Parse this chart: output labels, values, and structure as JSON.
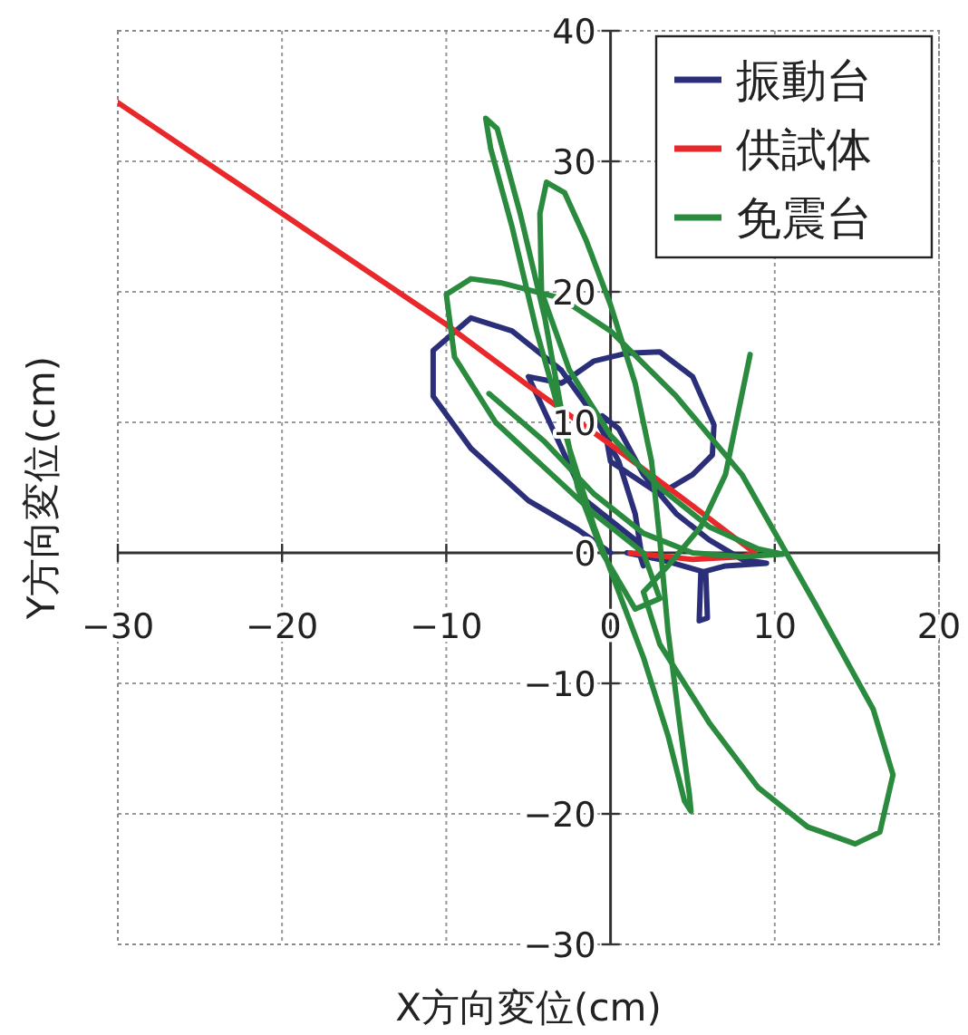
{
  "chart_data": {
    "type": "line",
    "xlabel": "X方向変位(cm)",
    "ylabel": "Y方向変位(cm)",
    "xlim": [
      -30,
      20
    ],
    "ylim": [
      -30,
      40
    ],
    "xticks": [
      -30,
      -20,
      -10,
      0,
      10,
      20
    ],
    "yticks": [
      -30,
      -20,
      -10,
      0,
      10,
      20,
      30,
      40
    ],
    "grid": true,
    "legend": "top right",
    "marker": "none",
    "line_style": "solid",
    "series": [
      {
        "name": "振動台",
        "color": "#2b2f7a",
        "x": [
          0,
          -2,
          -5,
          -8.5,
          -10.8,
          -10.8,
          -8.5,
          -6,
          -3,
          -1,
          0.5,
          1.5,
          2,
          1.5,
          -1.5,
          -5,
          -3,
          -2.6,
          -1,
          1,
          3,
          5,
          6.3,
          6.2,
          5,
          3,
          0,
          -0.5,
          0.5,
          2,
          4,
          6,
          8,
          9.5,
          7,
          5.5,
          5.4,
          5.9,
          5.8,
          3,
          1
        ],
        "values": [
          0,
          1.8,
          4,
          8,
          12,
          15.5,
          18,
          17,
          14,
          10.5,
          7,
          3,
          -1,
          1,
          4,
          13.5,
          13,
          13.3,
          14.7,
          15.3,
          15.4,
          13.5,
          9.8,
          7.5,
          6,
          4.5,
          7,
          10.5,
          9.5,
          6,
          3,
          1,
          -0.5,
          -0.8,
          -1,
          -1.5,
          -5.2,
          -5,
          -1.5,
          -0.5,
          0
        ]
      },
      {
        "name": "供試体",
        "color": "#e8282b",
        "x": [
          -30,
          -20,
          -10,
          -5,
          0,
          5,
          7.5,
          8.8,
          8,
          5,
          2,
          1.2
        ],
        "values": [
          34.5,
          26,
          17.5,
          12.8,
          8.3,
          3.6,
          1.2,
          0,
          -0.3,
          -0.5,
          -0.1,
          0
        ]
      },
      {
        "name": "免震台",
        "color": "#2a8a3e",
        "x": [
          -7.4,
          -4,
          -1,
          2,
          5,
          8,
          10.5,
          9,
          6,
          3,
          0,
          -2.5,
          -4.2,
          -4.3,
          -3.9,
          -2.8,
          -1.5,
          0,
          1.5,
          2.5,
          3,
          3.5,
          4.2,
          4.8,
          4.9,
          4.5,
          3.5,
          2,
          0.5,
          -1,
          -2.5,
          -4.5,
          -6,
          -7.3,
          -7.6,
          -6.9,
          -5.5,
          -4,
          -3,
          -2,
          -0.5,
          1.5,
          3,
          2,
          -1,
          -4,
          -7,
          -9.5,
          -10,
          -8.5,
          -6.7,
          -3,
          0,
          4,
          8,
          12.5,
          16,
          17.2,
          16.4,
          14.9,
          12,
          9,
          6,
          3,
          2,
          3.5,
          5.5,
          7,
          8.5
        ],
        "values": [
          12.2,
          8.5,
          4.5,
          1.5,
          0,
          -0.3,
          -0.1,
          0.3,
          2,
          5,
          9,
          14,
          20,
          26,
          28.4,
          27.6,
          24,
          19,
          13,
          7,
          1,
          -6,
          -13,
          -18.5,
          -19.8,
          -19,
          -14,
          -8,
          -3,
          2,
          8,
          17,
          25,
          31,
          33.3,
          32.5,
          26,
          18,
          11,
          5,
          0,
          -4.3,
          -3.5,
          0,
          3,
          6.5,
          10,
          15,
          19.8,
          21,
          20.7,
          19.5,
          17,
          12,
          6,
          -4,
          -12,
          -17,
          -21.4,
          -22.3,
          -21,
          -18,
          -13,
          -7,
          -3,
          -1,
          2,
          6,
          15.2
        ]
      }
    ]
  }
}
